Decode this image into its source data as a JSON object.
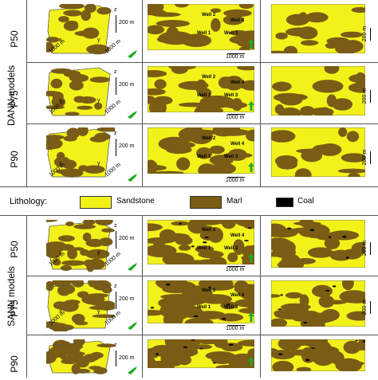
{
  "groups": {
    "dann": "DANN models",
    "sann": "SANN models"
  },
  "rows": {
    "dann": [
      "P50",
      "P75",
      "P90"
    ],
    "sann": [
      "P50",
      "P75",
      "P90"
    ]
  },
  "axes": {
    "z": "z",
    "x": "x",
    "y": "y",
    "vertical_scale": "200 m",
    "horizontal_scale": "1000 m"
  },
  "wells": {
    "well1": "Well 1",
    "well2": "Well 2",
    "well3": "Well 3",
    "well4": "Well 4"
  },
  "legend": {
    "title": "Lithology:",
    "items": [
      {
        "label": "Sandstone",
        "color": "#f2f21a"
      },
      {
        "label": "Marl",
        "color": "#7a5c14"
      },
      {
        "label": "Coal",
        "color": "#000000"
      }
    ]
  },
  "colors": {
    "sandstone": "#f2f21a",
    "marl": "#7a5c14",
    "coal": "#000000",
    "north_arrow": "#22aa22"
  }
}
